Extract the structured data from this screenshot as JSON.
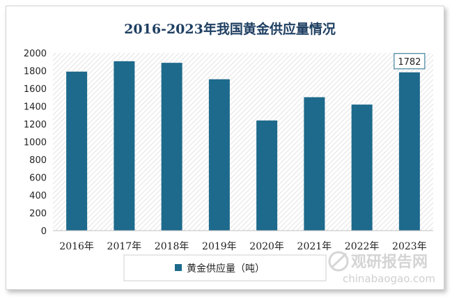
{
  "chart_data": {
    "type": "bar",
    "title": "2016-2023年我国黄金供应量情况",
    "categories": [
      "2016年",
      "2017年",
      "2018年",
      "2019年",
      "2020年",
      "2021年",
      "2022年",
      "2023年"
    ],
    "series": [
      {
        "name": "黄金供应量（吨）",
        "values": [
          1790,
          1907,
          1889,
          1704,
          1240,
          1502,
          1419,
          1782
        ],
        "color": "#1d6a8c"
      }
    ],
    "data_labels": [
      {
        "category": "2023年",
        "text": "1782"
      }
    ],
    "ylim": [
      0,
      2000
    ],
    "yticks": [
      0,
      200,
      400,
      600,
      800,
      1000,
      1200,
      1400,
      1600,
      1800,
      2000
    ],
    "xlabel": "",
    "ylabel": "",
    "legend_position": "bottom",
    "grid": false,
    "plot_background": "diagonal-hatch"
  },
  "watermark": {
    "text_cn": "观研报告网",
    "text_en": "chinabaogao.com"
  }
}
